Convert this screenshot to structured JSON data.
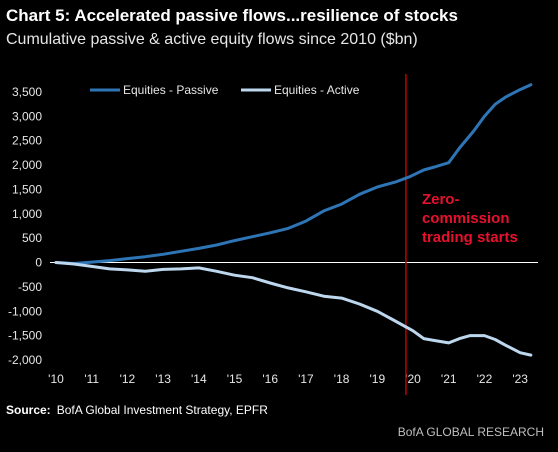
{
  "title": "Chart 5: Accelerated passive flows...resilience of stocks",
  "subtitle": "Cumulative passive & active equity flows since 2010 ($bn)",
  "source_label": "Source:",
  "source_text": "BofA Global Investment Strategy, EPFR",
  "brand": "BofA GLOBAL RESEARCH",
  "colors": {
    "background": "#000000",
    "passive": "#2e75b6",
    "active": "#bdd7ee",
    "event_line": "#c00000",
    "annotation": "#e8112d"
  },
  "chart_data": {
    "type": "line",
    "title": "Chart 5: Accelerated passive flows...resilience of stocks",
    "subtitle": "Cumulative passive & active equity flows since 2010 ($bn)",
    "xlabel": "",
    "ylabel": "",
    "xlim": [
      2010.0,
      2023.5
    ],
    "ylim": [
      -2000,
      3500
    ],
    "x_ticks": [
      2010,
      2011,
      2012,
      2013,
      2014,
      2015,
      2016,
      2017,
      2018,
      2019,
      2020,
      2021,
      2022,
      2023
    ],
    "x_tick_labels": [
      "'10",
      "'11",
      "'12",
      "'13",
      "'14",
      "'15",
      "'16",
      "'17",
      "'18",
      "'19",
      "'20",
      "'21",
      "'22",
      "'23"
    ],
    "y_ticks": [
      -2000,
      -1500,
      -1000,
      -500,
      0,
      500,
      1000,
      1500,
      2000,
      2500,
      3000,
      3500
    ],
    "y_tick_labels": [
      "-2,000",
      "-1,500",
      "-1,000",
      "-500",
      "0",
      "500",
      "1,000",
      "1,500",
      "2,000",
      "2,500",
      "3,000",
      "3,500"
    ],
    "grid": false,
    "legend": "top-left",
    "series": [
      {
        "name": "Equities - Passive",
        "color": "#2e75b6",
        "x": [
          2010.0,
          2010.5,
          2011.0,
          2011.5,
          2012.0,
          2012.5,
          2013.0,
          2013.5,
          2014.0,
          2014.5,
          2015.0,
          2015.5,
          2016.0,
          2016.5,
          2017.0,
          2017.5,
          2018.0,
          2018.5,
          2019.0,
          2019.5,
          2019.9,
          2020.3,
          2020.6,
          2021.0,
          2021.3,
          2021.7,
          2022.0,
          2022.3,
          2022.6,
          2023.0,
          2023.3
        ],
        "y": [
          0,
          -20,
          10,
          40,
          80,
          120,
          170,
          230,
          290,
          360,
          450,
          530,
          610,
          700,
          850,
          1060,
          1200,
          1400,
          1550,
          1650,
          1760,
          1900,
          1960,
          2050,
          2350,
          2700,
          3000,
          3250,
          3400,
          3550,
          3650
        ]
      },
      {
        "name": "Equities - Active",
        "color": "#bdd7ee",
        "x": [
          2010.0,
          2010.5,
          2011.0,
          2011.5,
          2012.0,
          2012.5,
          2013.0,
          2013.5,
          2014.0,
          2014.5,
          2015.0,
          2015.5,
          2016.0,
          2016.5,
          2017.0,
          2017.5,
          2018.0,
          2018.5,
          2019.0,
          2019.5,
          2020.0,
          2020.3,
          2020.6,
          2021.0,
          2021.3,
          2021.6,
          2022.0,
          2022.3,
          2022.6,
          2023.0,
          2023.3
        ],
        "y": [
          0,
          -30,
          -80,
          -130,
          -150,
          -180,
          -140,
          -130,
          -110,
          -180,
          -260,
          -310,
          -420,
          -520,
          -600,
          -690,
          -730,
          -850,
          -1000,
          -1200,
          -1400,
          -1560,
          -1600,
          -1650,
          -1560,
          -1500,
          -1500,
          -1580,
          -1700,
          -1850,
          -1900
        ]
      }
    ],
    "vertical_line": {
      "x": 2019.8
    },
    "annotation": {
      "lines": [
        "Zero-",
        "commission",
        "trading starts"
      ],
      "x": 2020.25,
      "y": 1200
    }
  }
}
